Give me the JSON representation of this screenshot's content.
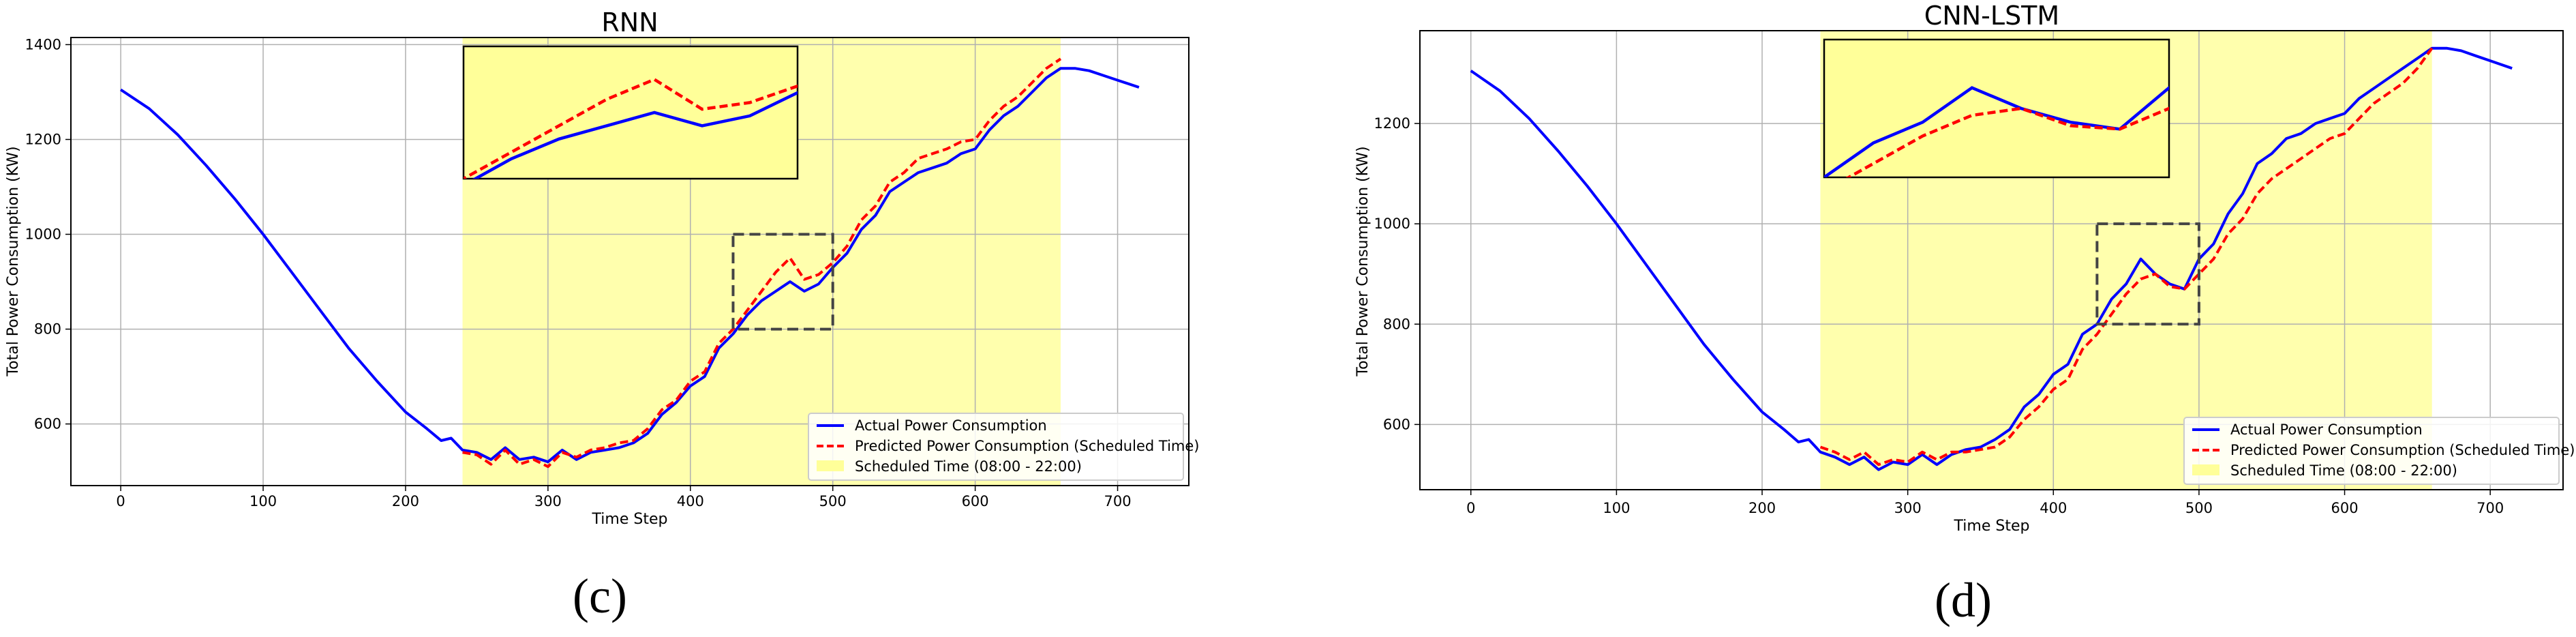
{
  "chart_data": [
    {
      "type": "line",
      "title": "RNN",
      "xlabel": "Time Step",
      "ylabel": "Total Power Consumption (KW)",
      "panel_label": "(c)",
      "xlim": [
        -35,
        750
      ],
      "ylim": [
        470,
        1415
      ],
      "xticks": [
        "0",
        "100",
        "200",
        "300",
        "400",
        "500",
        "600",
        "700"
      ],
      "yticks": [
        "600",
        "800",
        "1000",
        "1200",
        "1400"
      ],
      "grid": true,
      "legend_position": "lower right",
      "legend": [
        "Actual Power Consumption",
        "Predicted Power Consumption (Scheduled Time)",
        "Scheduled Time (08:00 - 22:00)"
      ],
      "scheduled_span": [
        240,
        660
      ],
      "zoom_box": {
        "x": [
          430,
          500
        ],
        "y": [
          800,
          1000
        ]
      },
      "series": [
        {
          "name": "Actual Power Consumption",
          "color": "#0000ff",
          "x": [
            0,
            20,
            40,
            60,
            80,
            100,
            120,
            140,
            160,
            180,
            200,
            215,
            225,
            232,
            240,
            250,
            260,
            270,
            280,
            290,
            300,
            310,
            320,
            330,
            340,
            350,
            360,
            370,
            380,
            390,
            400,
            410,
            420,
            430,
            440,
            450,
            460,
            470,
            480,
            490,
            500,
            510,
            520,
            530,
            540,
            550,
            560,
            570,
            580,
            590,
            600,
            610,
            620,
            630,
            640,
            650,
            660,
            670,
            680,
            690,
            700,
            715
          ],
          "y": [
            1305,
            1265,
            1210,
            1145,
            1075,
            1000,
            920,
            840,
            760,
            690,
            625,
            590,
            565,
            570,
            545,
            540,
            525,
            550,
            525,
            530,
            520,
            545,
            525,
            540,
            545,
            550,
            560,
            580,
            620,
            645,
            680,
            700,
            760,
            790,
            830,
            860,
            880,
            900,
            880,
            895,
            930,
            960,
            1010,
            1040,
            1090,
            1110,
            1130,
            1140,
            1150,
            1170,
            1180,
            1220,
            1250,
            1270,
            1300,
            1330,
            1350,
            1350,
            1345,
            1335,
            1325,
            1310
          ]
        },
        {
          "name": "Predicted Power Consumption (Scheduled Time)",
          "color": "#ff0000",
          "x": [
            240,
            250,
            260,
            270,
            280,
            290,
            300,
            310,
            320,
            330,
            340,
            350,
            360,
            370,
            380,
            390,
            400,
            410,
            420,
            430,
            440,
            450,
            460,
            470,
            480,
            490,
            500,
            510,
            520,
            530,
            540,
            550,
            560,
            570,
            580,
            590,
            600,
            610,
            620,
            630,
            640,
            650,
            660
          ],
          "y": [
            540,
            535,
            515,
            545,
            515,
            525,
            510,
            540,
            530,
            545,
            550,
            560,
            565,
            590,
            630,
            650,
            690,
            710,
            770,
            800,
            840,
            880,
            920,
            950,
            905,
            915,
            940,
            975,
            1030,
            1060,
            1110,
            1130,
            1160,
            1170,
            1180,
            1195,
            1200,
            1240,
            1270,
            1290,
            1320,
            1350,
            1370
          ]
        }
      ]
    },
    {
      "type": "line",
      "title": "CNN-LSTM",
      "xlabel": "Time Step",
      "ylabel": "Total Power Consumption (KW)",
      "panel_label": "(d)",
      "xlim": [
        -35,
        750
      ],
      "ylim": [
        470,
        1385
      ],
      "xticks": [
        "0",
        "100",
        "200",
        "300",
        "400",
        "500",
        "600",
        "700"
      ],
      "yticks": [
        "600",
        "800",
        "1000",
        "1200"
      ],
      "grid": true,
      "legend_position": "lower right",
      "legend": [
        "Actual Power Consumption",
        "Predicted Power Consumption (Scheduled Time)",
        "Scheduled Time (08:00 - 22:00)"
      ],
      "scheduled_span": [
        240,
        660
      ],
      "zoom_box": {
        "x": [
          430,
          500
        ],
        "y": [
          800,
          1000
        ]
      },
      "series": [
        {
          "name": "Actual Power Consumption",
          "color": "#0000ff",
          "x": [
            0,
            20,
            40,
            60,
            80,
            100,
            120,
            140,
            160,
            180,
            200,
            215,
            225,
            232,
            240,
            250,
            260,
            270,
            280,
            290,
            300,
            310,
            320,
            330,
            340,
            350,
            360,
            370,
            380,
            390,
            400,
            410,
            420,
            430,
            440,
            450,
            460,
            470,
            480,
            490,
            500,
            510,
            520,
            530,
            540,
            550,
            560,
            570,
            580,
            590,
            600,
            610,
            620,
            630,
            640,
            650,
            660,
            670,
            680,
            690,
            700,
            715
          ],
          "y": [
            1305,
            1265,
            1210,
            1145,
            1075,
            1000,
            920,
            840,
            760,
            690,
            625,
            590,
            565,
            570,
            545,
            535,
            520,
            535,
            510,
            525,
            520,
            540,
            520,
            540,
            550,
            555,
            570,
            590,
            635,
            660,
            700,
            720,
            780,
            800,
            850,
            880,
            930,
            900,
            880,
            870,
            930,
            960,
            1020,
            1060,
            1120,
            1140,
            1170,
            1180,
            1200,
            1210,
            1220,
            1250,
            1270,
            1290,
            1310,
            1330,
            1350,
            1350,
            1345,
            1335,
            1325,
            1310
          ]
        },
        {
          "name": "Predicted Power Consumption (Scheduled Time)",
          "color": "#ff0000",
          "x": [
            240,
            250,
            260,
            270,
            280,
            290,
            300,
            310,
            320,
            330,
            340,
            350,
            360,
            370,
            380,
            390,
            400,
            410,
            420,
            430,
            440,
            450,
            460,
            470,
            480,
            490,
            500,
            510,
            520,
            530,
            540,
            550,
            560,
            570,
            580,
            590,
            600,
            610,
            620,
            630,
            640,
            650,
            660
          ],
          "y": [
            555,
            545,
            530,
            545,
            520,
            530,
            525,
            545,
            530,
            545,
            545,
            550,
            555,
            575,
            610,
            635,
            670,
            690,
            750,
            780,
            820,
            860,
            890,
            900,
            875,
            870,
            900,
            930,
            980,
            1010,
            1060,
            1090,
            1110,
            1130,
            1150,
            1170,
            1180,
            1210,
            1240,
            1260,
            1280,
            1310,
            1350
          ]
        }
      ]
    }
  ]
}
